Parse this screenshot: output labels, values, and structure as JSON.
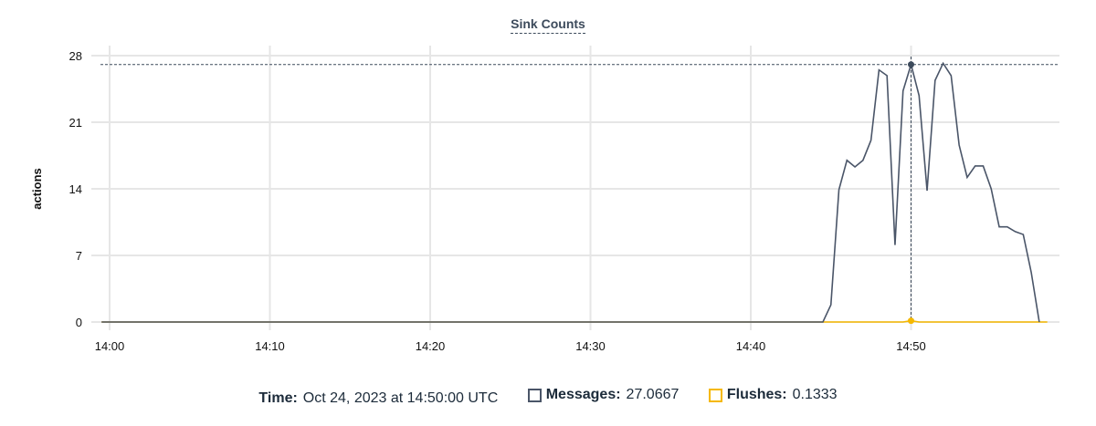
{
  "chart_data": {
    "type": "line",
    "title": "Sink Counts",
    "xlabel": "",
    "ylabel": "actions",
    "x_ticks": [
      "14:00",
      "14:10",
      "14:20",
      "14:30",
      "14:40",
      "14:50"
    ],
    "y_ticks": [
      0,
      7,
      14,
      21,
      28
    ],
    "ylim": [
      0,
      28
    ],
    "grid": true,
    "series": [
      {
        "name": "Messages",
        "color": "#4a5568",
        "points": [
          [
            "13:59:30",
            0
          ],
          [
            "14:44:30",
            0
          ],
          [
            "14:45:00",
            1.8
          ],
          [
            "14:45:30",
            13.9
          ],
          [
            "14:46:00",
            17.0
          ],
          [
            "14:46:30",
            16.3
          ],
          [
            "14:47:00",
            17.0
          ],
          [
            "14:47:30",
            19.1
          ],
          [
            "14:48:00",
            26.5
          ],
          [
            "14:48:30",
            25.9
          ],
          [
            "14:49:00",
            8.1
          ],
          [
            "14:49:30",
            24.3
          ],
          [
            "14:50:00",
            27.0667
          ],
          [
            "14:50:30",
            23.8
          ],
          [
            "14:51:00",
            13.8
          ],
          [
            "14:51:30",
            25.4
          ],
          [
            "14:52:00",
            27.2
          ],
          [
            "14:52:30",
            25.9
          ],
          [
            "14:53:00",
            18.6
          ],
          [
            "14:53:30",
            15.2
          ],
          [
            "14:54:00",
            16.4
          ],
          [
            "14:54:30",
            16.4
          ],
          [
            "14:55:00",
            14.0
          ],
          [
            "14:55:30",
            10.0
          ],
          [
            "14:56:00",
            10.0
          ],
          [
            "14:56:30",
            9.5
          ],
          [
            "14:57:00",
            9.2
          ],
          [
            "14:57:30",
            5.2
          ],
          [
            "14:58:00",
            0
          ]
        ]
      },
      {
        "name": "Flushes",
        "color": "#f5b800",
        "points": [
          [
            "13:59:30",
            0
          ],
          [
            "14:49:30",
            0
          ],
          [
            "14:50:00",
            0.1333
          ],
          [
            "14:50:30",
            0
          ],
          [
            "14:58:30",
            0
          ]
        ]
      }
    ],
    "hover": {
      "time_label": "Time:",
      "time": "Oct 24, 2023 at 14:50:00 UTC",
      "x": "14:50:00",
      "values": [
        {
          "label": "Messages:",
          "value": "27.0667"
        },
        {
          "label": "Flushes:",
          "value": "0.1333"
        }
      ]
    }
  }
}
